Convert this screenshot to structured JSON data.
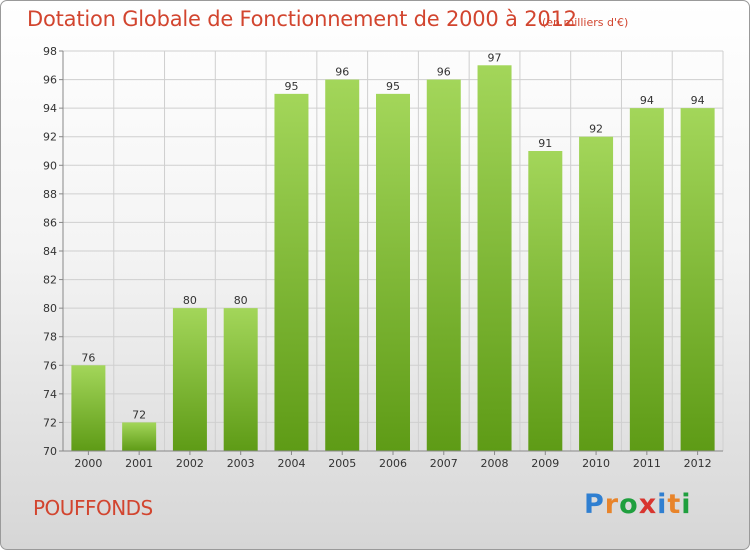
{
  "chart_data": {
    "type": "bar",
    "title": "Dotation Globale de Fonctionnement de 2000 à 2012",
    "unit_note": "(en milliers d'€)",
    "categories": [
      "2000",
      "2001",
      "2002",
      "2003",
      "2004",
      "2005",
      "2006",
      "2007",
      "2008",
      "2009",
      "2010",
      "2011",
      "2012"
    ],
    "values": [
      76,
      72,
      80,
      80,
      95,
      96,
      95,
      96,
      97,
      91,
      92,
      94,
      94
    ],
    "data_labels": [
      "76",
      "72",
      "80",
      "80",
      "95",
      "96",
      "95",
      "96",
      "97",
      "91",
      "92",
      "94",
      "94"
    ],
    "ylim": [
      70,
      98
    ],
    "yticks": [
      "70",
      "72",
      "74",
      "76",
      "78",
      "80",
      "82",
      "84",
      "86",
      "88",
      "90",
      "92",
      "94",
      "96",
      "98"
    ],
    "grid": true,
    "legend": "none",
    "colors": {
      "bar_light": "#a3d65a",
      "bar_dark": "#5e9b16",
      "grid": "#cfcfcf",
      "axis_text": "#333333",
      "title": "#d2452f"
    }
  },
  "place_name": "POUFFONDS",
  "logo": {
    "text": "Proxiti",
    "letter_colors": [
      "#2f7fd1",
      "#e8842a",
      "#1f9f3e",
      "#d8352f",
      "#2f7fd1",
      "#e8842a",
      "#1f9f3e"
    ]
  }
}
